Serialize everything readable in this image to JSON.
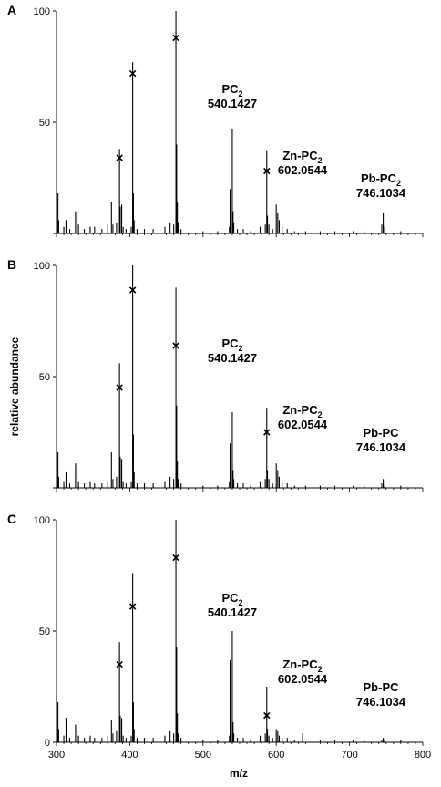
{
  "figure": {
    "ylabel": "relative abundance",
    "xlabel": "m/z",
    "x_ticks": [
      "300",
      "400",
      "500",
      "600",
      "700",
      "800"
    ],
    "y_ticks": [
      "0",
      "50",
      "100"
    ],
    "panels": [
      "A",
      "B",
      "C"
    ]
  },
  "chart_data": [
    {
      "type": "bar",
      "panel": "A",
      "xlim": [
        300,
        800
      ],
      "ylim": [
        0,
        100
      ],
      "peaks": [
        {
          "mz": 302,
          "y": 18
        },
        {
          "mz": 303,
          "y": 6
        },
        {
          "mz": 310,
          "y": 3
        },
        {
          "mz": 313,
          "y": 6
        },
        {
          "mz": 318,
          "y": 2
        },
        {
          "mz": 326,
          "y": 10
        },
        {
          "mz": 328,
          "y": 9
        },
        {
          "mz": 330,
          "y": 4
        },
        {
          "mz": 338,
          "y": 2
        },
        {
          "mz": 346,
          "y": 3
        },
        {
          "mz": 352,
          "y": 3
        },
        {
          "mz": 362,
          "y": 2
        },
        {
          "mz": 370,
          "y": 4
        },
        {
          "mz": 375,
          "y": 14
        },
        {
          "mz": 377,
          "y": 4
        },
        {
          "mz": 382,
          "y": 5
        },
        {
          "mz": 386,
          "y": 38
        },
        {
          "mz": 387,
          "y": 12
        },
        {
          "mz": 389,
          "y": 13
        },
        {
          "mz": 391,
          "y": 3
        },
        {
          "mz": 395,
          "y": 2
        },
        {
          "mz": 402,
          "y": 3
        },
        {
          "mz": 404,
          "y": 77
        },
        {
          "mz": 405,
          "y": 18
        },
        {
          "mz": 406,
          "y": 6
        },
        {
          "mz": 410,
          "y": 2
        },
        {
          "mz": 420,
          "y": 2
        },
        {
          "mz": 432,
          "y": 2
        },
        {
          "mz": 448,
          "y": 3
        },
        {
          "mz": 455,
          "y": 5
        },
        {
          "mz": 460,
          "y": 4
        },
        {
          "mz": 463,
          "y": 100
        },
        {
          "mz": 464,
          "y": 40
        },
        {
          "mz": 465,
          "y": 14
        },
        {
          "mz": 466,
          "y": 5
        },
        {
          "mz": 470,
          "y": 2
        },
        {
          "mz": 500,
          "y": 1
        },
        {
          "mz": 520,
          "y": 1
        },
        {
          "mz": 536,
          "y": 3
        },
        {
          "mz": 537,
          "y": 20
        },
        {
          "mz": 540,
          "y": 47
        },
        {
          "mz": 541,
          "y": 10
        },
        {
          "mz": 542,
          "y": 5
        },
        {
          "mz": 547,
          "y": 2
        },
        {
          "mz": 555,
          "y": 2
        },
        {
          "mz": 565,
          "y": 1
        },
        {
          "mz": 578,
          "y": 3
        },
        {
          "mz": 585,
          "y": 4
        },
        {
          "mz": 587,
          "y": 37
        },
        {
          "mz": 588,
          "y": 8
        },
        {
          "mz": 590,
          "y": 4
        },
        {
          "mz": 595,
          "y": 2
        },
        {
          "mz": 600,
          "y": 13
        },
        {
          "mz": 602,
          "y": 9
        },
        {
          "mz": 604,
          "y": 6
        },
        {
          "mz": 608,
          "y": 3
        },
        {
          "mz": 615,
          "y": 2
        },
        {
          "mz": 625,
          "y": 1
        },
        {
          "mz": 640,
          "y": 1
        },
        {
          "mz": 660,
          "y": 1
        },
        {
          "mz": 680,
          "y": 1
        },
        {
          "mz": 705,
          "y": 1
        },
        {
          "mz": 720,
          "y": 1
        },
        {
          "mz": 744,
          "y": 4
        },
        {
          "mz": 746,
          "y": 9
        },
        {
          "mz": 748,
          "y": 3
        },
        {
          "mz": 770,
          "y": 1
        }
      ],
      "x_markers": [
        {
          "mz": 386,
          "y": 34
        },
        {
          "mz": 404,
          "y": 72
        },
        {
          "mz": 463,
          "y": 88
        },
        {
          "mz": 587,
          "y": 28
        }
      ],
      "annotations": [
        {
          "name": "PC",
          "sub": "2",
          "mass": "540.1427"
        },
        {
          "name": "Zn-PC",
          "sub": "2",
          "mass": "602.0544"
        },
        {
          "name": "Pb-PC",
          "sub": "2",
          "mass": "746.1034"
        }
      ]
    },
    {
      "type": "bar",
      "panel": "B",
      "xlim": [
        300,
        800
      ],
      "ylim": [
        0,
        100
      ],
      "peaks": [
        {
          "mz": 302,
          "y": 16
        },
        {
          "mz": 303,
          "y": 5
        },
        {
          "mz": 310,
          "y": 3
        },
        {
          "mz": 313,
          "y": 7
        },
        {
          "mz": 318,
          "y": 2
        },
        {
          "mz": 326,
          "y": 11
        },
        {
          "mz": 328,
          "y": 10
        },
        {
          "mz": 330,
          "y": 3
        },
        {
          "mz": 338,
          "y": 2
        },
        {
          "mz": 346,
          "y": 3
        },
        {
          "mz": 352,
          "y": 2
        },
        {
          "mz": 362,
          "y": 2
        },
        {
          "mz": 370,
          "y": 3
        },
        {
          "mz": 375,
          "y": 16
        },
        {
          "mz": 377,
          "y": 4
        },
        {
          "mz": 382,
          "y": 5
        },
        {
          "mz": 386,
          "y": 56
        },
        {
          "mz": 387,
          "y": 14
        },
        {
          "mz": 389,
          "y": 13
        },
        {
          "mz": 391,
          "y": 3
        },
        {
          "mz": 395,
          "y": 2
        },
        {
          "mz": 402,
          "y": 3
        },
        {
          "mz": 404,
          "y": 100
        },
        {
          "mz": 405,
          "y": 24
        },
        {
          "mz": 406,
          "y": 7
        },
        {
          "mz": 410,
          "y": 2
        },
        {
          "mz": 420,
          "y": 2
        },
        {
          "mz": 432,
          "y": 2
        },
        {
          "mz": 448,
          "y": 3
        },
        {
          "mz": 455,
          "y": 5
        },
        {
          "mz": 460,
          "y": 4
        },
        {
          "mz": 463,
          "y": 90
        },
        {
          "mz": 464,
          "y": 37
        },
        {
          "mz": 465,
          "y": 12
        },
        {
          "mz": 466,
          "y": 4
        },
        {
          "mz": 470,
          "y": 2
        },
        {
          "mz": 500,
          "y": 1
        },
        {
          "mz": 520,
          "y": 1
        },
        {
          "mz": 536,
          "y": 3
        },
        {
          "mz": 537,
          "y": 20
        },
        {
          "mz": 540,
          "y": 34
        },
        {
          "mz": 541,
          "y": 8
        },
        {
          "mz": 542,
          "y": 4
        },
        {
          "mz": 547,
          "y": 2
        },
        {
          "mz": 555,
          "y": 2
        },
        {
          "mz": 565,
          "y": 1
        },
        {
          "mz": 578,
          "y": 3
        },
        {
          "mz": 585,
          "y": 4
        },
        {
          "mz": 587,
          "y": 36
        },
        {
          "mz": 588,
          "y": 8
        },
        {
          "mz": 590,
          "y": 4
        },
        {
          "mz": 595,
          "y": 2
        },
        {
          "mz": 600,
          "y": 11
        },
        {
          "mz": 602,
          "y": 8
        },
        {
          "mz": 604,
          "y": 5
        },
        {
          "mz": 608,
          "y": 3
        },
        {
          "mz": 615,
          "y": 2
        },
        {
          "mz": 625,
          "y": 1
        },
        {
          "mz": 640,
          "y": 1
        },
        {
          "mz": 660,
          "y": 1
        },
        {
          "mz": 680,
          "y": 1
        },
        {
          "mz": 705,
          "y": 1
        },
        {
          "mz": 720,
          "y": 1
        },
        {
          "mz": 744,
          "y": 2
        },
        {
          "mz": 746,
          "y": 4
        },
        {
          "mz": 748,
          "y": 1
        },
        {
          "mz": 770,
          "y": 1
        }
      ],
      "x_markers": [
        {
          "mz": 386,
          "y": 45
        },
        {
          "mz": 404,
          "y": 89
        },
        {
          "mz": 463,
          "y": 64
        },
        {
          "mz": 587,
          "y": 25
        }
      ],
      "annotations": [
        {
          "name": "PC",
          "sub": "2",
          "mass": "540.1427"
        },
        {
          "name": "Zn-PC",
          "sub": "2",
          "mass": "602.0544"
        },
        {
          "name": "Pb-PC",
          "sub": "",
          "mass": "746.1034"
        }
      ]
    },
    {
      "type": "bar",
      "panel": "C",
      "xlim": [
        300,
        800
      ],
      "ylim": [
        0,
        100
      ],
      "peaks": [
        {
          "mz": 302,
          "y": 18
        },
        {
          "mz": 303,
          "y": 6
        },
        {
          "mz": 310,
          "y": 3
        },
        {
          "mz": 313,
          "y": 11
        },
        {
          "mz": 318,
          "y": 2
        },
        {
          "mz": 326,
          "y": 8
        },
        {
          "mz": 328,
          "y": 7
        },
        {
          "mz": 330,
          "y": 3
        },
        {
          "mz": 338,
          "y": 2
        },
        {
          "mz": 346,
          "y": 3
        },
        {
          "mz": 352,
          "y": 2
        },
        {
          "mz": 362,
          "y": 2
        },
        {
          "mz": 370,
          "y": 3
        },
        {
          "mz": 375,
          "y": 10
        },
        {
          "mz": 377,
          "y": 4
        },
        {
          "mz": 382,
          "y": 5
        },
        {
          "mz": 386,
          "y": 45
        },
        {
          "mz": 387,
          "y": 12
        },
        {
          "mz": 389,
          "y": 11
        },
        {
          "mz": 391,
          "y": 3
        },
        {
          "mz": 395,
          "y": 2
        },
        {
          "mz": 402,
          "y": 3
        },
        {
          "mz": 404,
          "y": 76
        },
        {
          "mz": 405,
          "y": 18
        },
        {
          "mz": 406,
          "y": 6
        },
        {
          "mz": 410,
          "y": 2
        },
        {
          "mz": 420,
          "y": 2
        },
        {
          "mz": 432,
          "y": 2
        },
        {
          "mz": 448,
          "y": 3
        },
        {
          "mz": 455,
          "y": 5
        },
        {
          "mz": 460,
          "y": 4
        },
        {
          "mz": 463,
          "y": 100
        },
        {
          "mz": 464,
          "y": 43
        },
        {
          "mz": 465,
          "y": 13
        },
        {
          "mz": 466,
          "y": 4
        },
        {
          "mz": 470,
          "y": 2
        },
        {
          "mz": 500,
          "y": 1
        },
        {
          "mz": 520,
          "y": 1
        },
        {
          "mz": 536,
          "y": 3
        },
        {
          "mz": 537,
          "y": 37
        },
        {
          "mz": 540,
          "y": 50
        },
        {
          "mz": 541,
          "y": 9
        },
        {
          "mz": 542,
          "y": 4
        },
        {
          "mz": 547,
          "y": 2
        },
        {
          "mz": 555,
          "y": 2
        },
        {
          "mz": 565,
          "y": 1
        },
        {
          "mz": 578,
          "y": 3
        },
        {
          "mz": 585,
          "y": 4
        },
        {
          "mz": 587,
          "y": 25
        },
        {
          "mz": 588,
          "y": 6
        },
        {
          "mz": 590,
          "y": 3
        },
        {
          "mz": 595,
          "y": 2
        },
        {
          "mz": 600,
          "y": 6
        },
        {
          "mz": 602,
          "y": 5
        },
        {
          "mz": 604,
          "y": 3
        },
        {
          "mz": 608,
          "y": 2
        },
        {
          "mz": 615,
          "y": 2
        },
        {
          "mz": 625,
          "y": 1
        },
        {
          "mz": 636,
          "y": 4
        },
        {
          "mz": 660,
          "y": 1
        },
        {
          "mz": 680,
          "y": 1
        },
        {
          "mz": 705,
          "y": 1
        },
        {
          "mz": 720,
          "y": 1
        },
        {
          "mz": 744,
          "y": 1
        },
        {
          "mz": 746,
          "y": 2
        },
        {
          "mz": 748,
          "y": 1
        },
        {
          "mz": 770,
          "y": 1
        }
      ],
      "x_markers": [
        {
          "mz": 386,
          "y": 35
        },
        {
          "mz": 404,
          "y": 61
        },
        {
          "mz": 463,
          "y": 83
        },
        {
          "mz": 587,
          "y": 12
        }
      ],
      "annotations": [
        {
          "name": "PC",
          "sub": "2",
          "mass": "540.1427"
        },
        {
          "name": "Zn-PC",
          "sub": "2",
          "mass": "602.0544"
        },
        {
          "name": "Pb-PC",
          "sub": "",
          "mass": "746.1034"
        }
      ]
    }
  ]
}
